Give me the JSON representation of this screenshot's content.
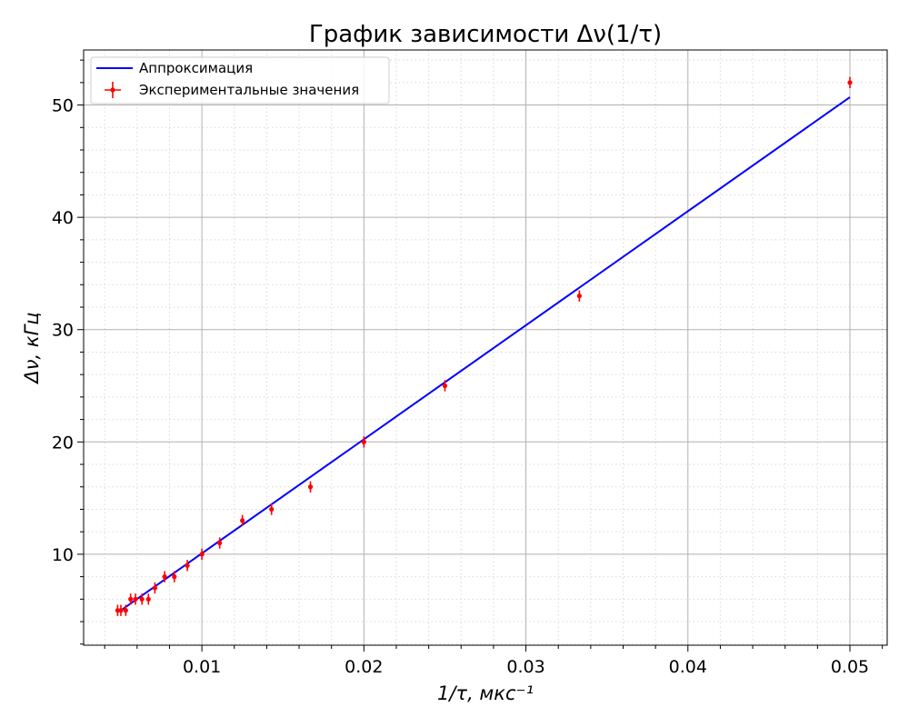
{
  "chart_data": {
    "type": "scatter",
    "title": "График зависимости Δν(1/τ)",
    "xlabel": "1/τ, мкс⁻¹",
    "ylabel": "Δν, кГц",
    "xlim": [
      0.0027,
      0.0523
    ],
    "ylim": [
      1.9,
      54.9
    ],
    "xticks": [
      0.01,
      0.02,
      0.03,
      0.04,
      0.05
    ],
    "xtick_labels": [
      "0.01",
      "0.02",
      "0.03",
      "0.04",
      "0.05"
    ],
    "yticks": [
      10,
      20,
      30,
      40,
      50
    ],
    "ytick_labels": [
      "10",
      "20",
      "30",
      "40",
      "50"
    ],
    "grid": "major solid, minor dotted",
    "legend_position": "top-left",
    "series": [
      {
        "name": "Аппроксимация",
        "kind": "line",
        "color": "#0000ff",
        "x": [
          0.005,
          0.05
        ],
        "y": [
          5.0,
          50.7
        ]
      },
      {
        "name": "Экспериментальные значения",
        "kind": "errorbar",
        "color": "#ff0000",
        "x": [
          0.0048,
          0.005,
          0.0053,
          0.0056,
          0.0059,
          0.0063,
          0.0067,
          0.0071,
          0.0077,
          0.0083,
          0.0091,
          0.01,
          0.0111,
          0.0125,
          0.0143,
          0.0167,
          0.02,
          0.025,
          0.0333,
          0.05
        ],
        "y": [
          5,
          5,
          5,
          6,
          6,
          6,
          6,
          7,
          8,
          8,
          9,
          10,
          11,
          13,
          14,
          16,
          20,
          25,
          33,
          52
        ],
        "yerr": 0.5,
        "xerr": 0.0001
      }
    ]
  }
}
